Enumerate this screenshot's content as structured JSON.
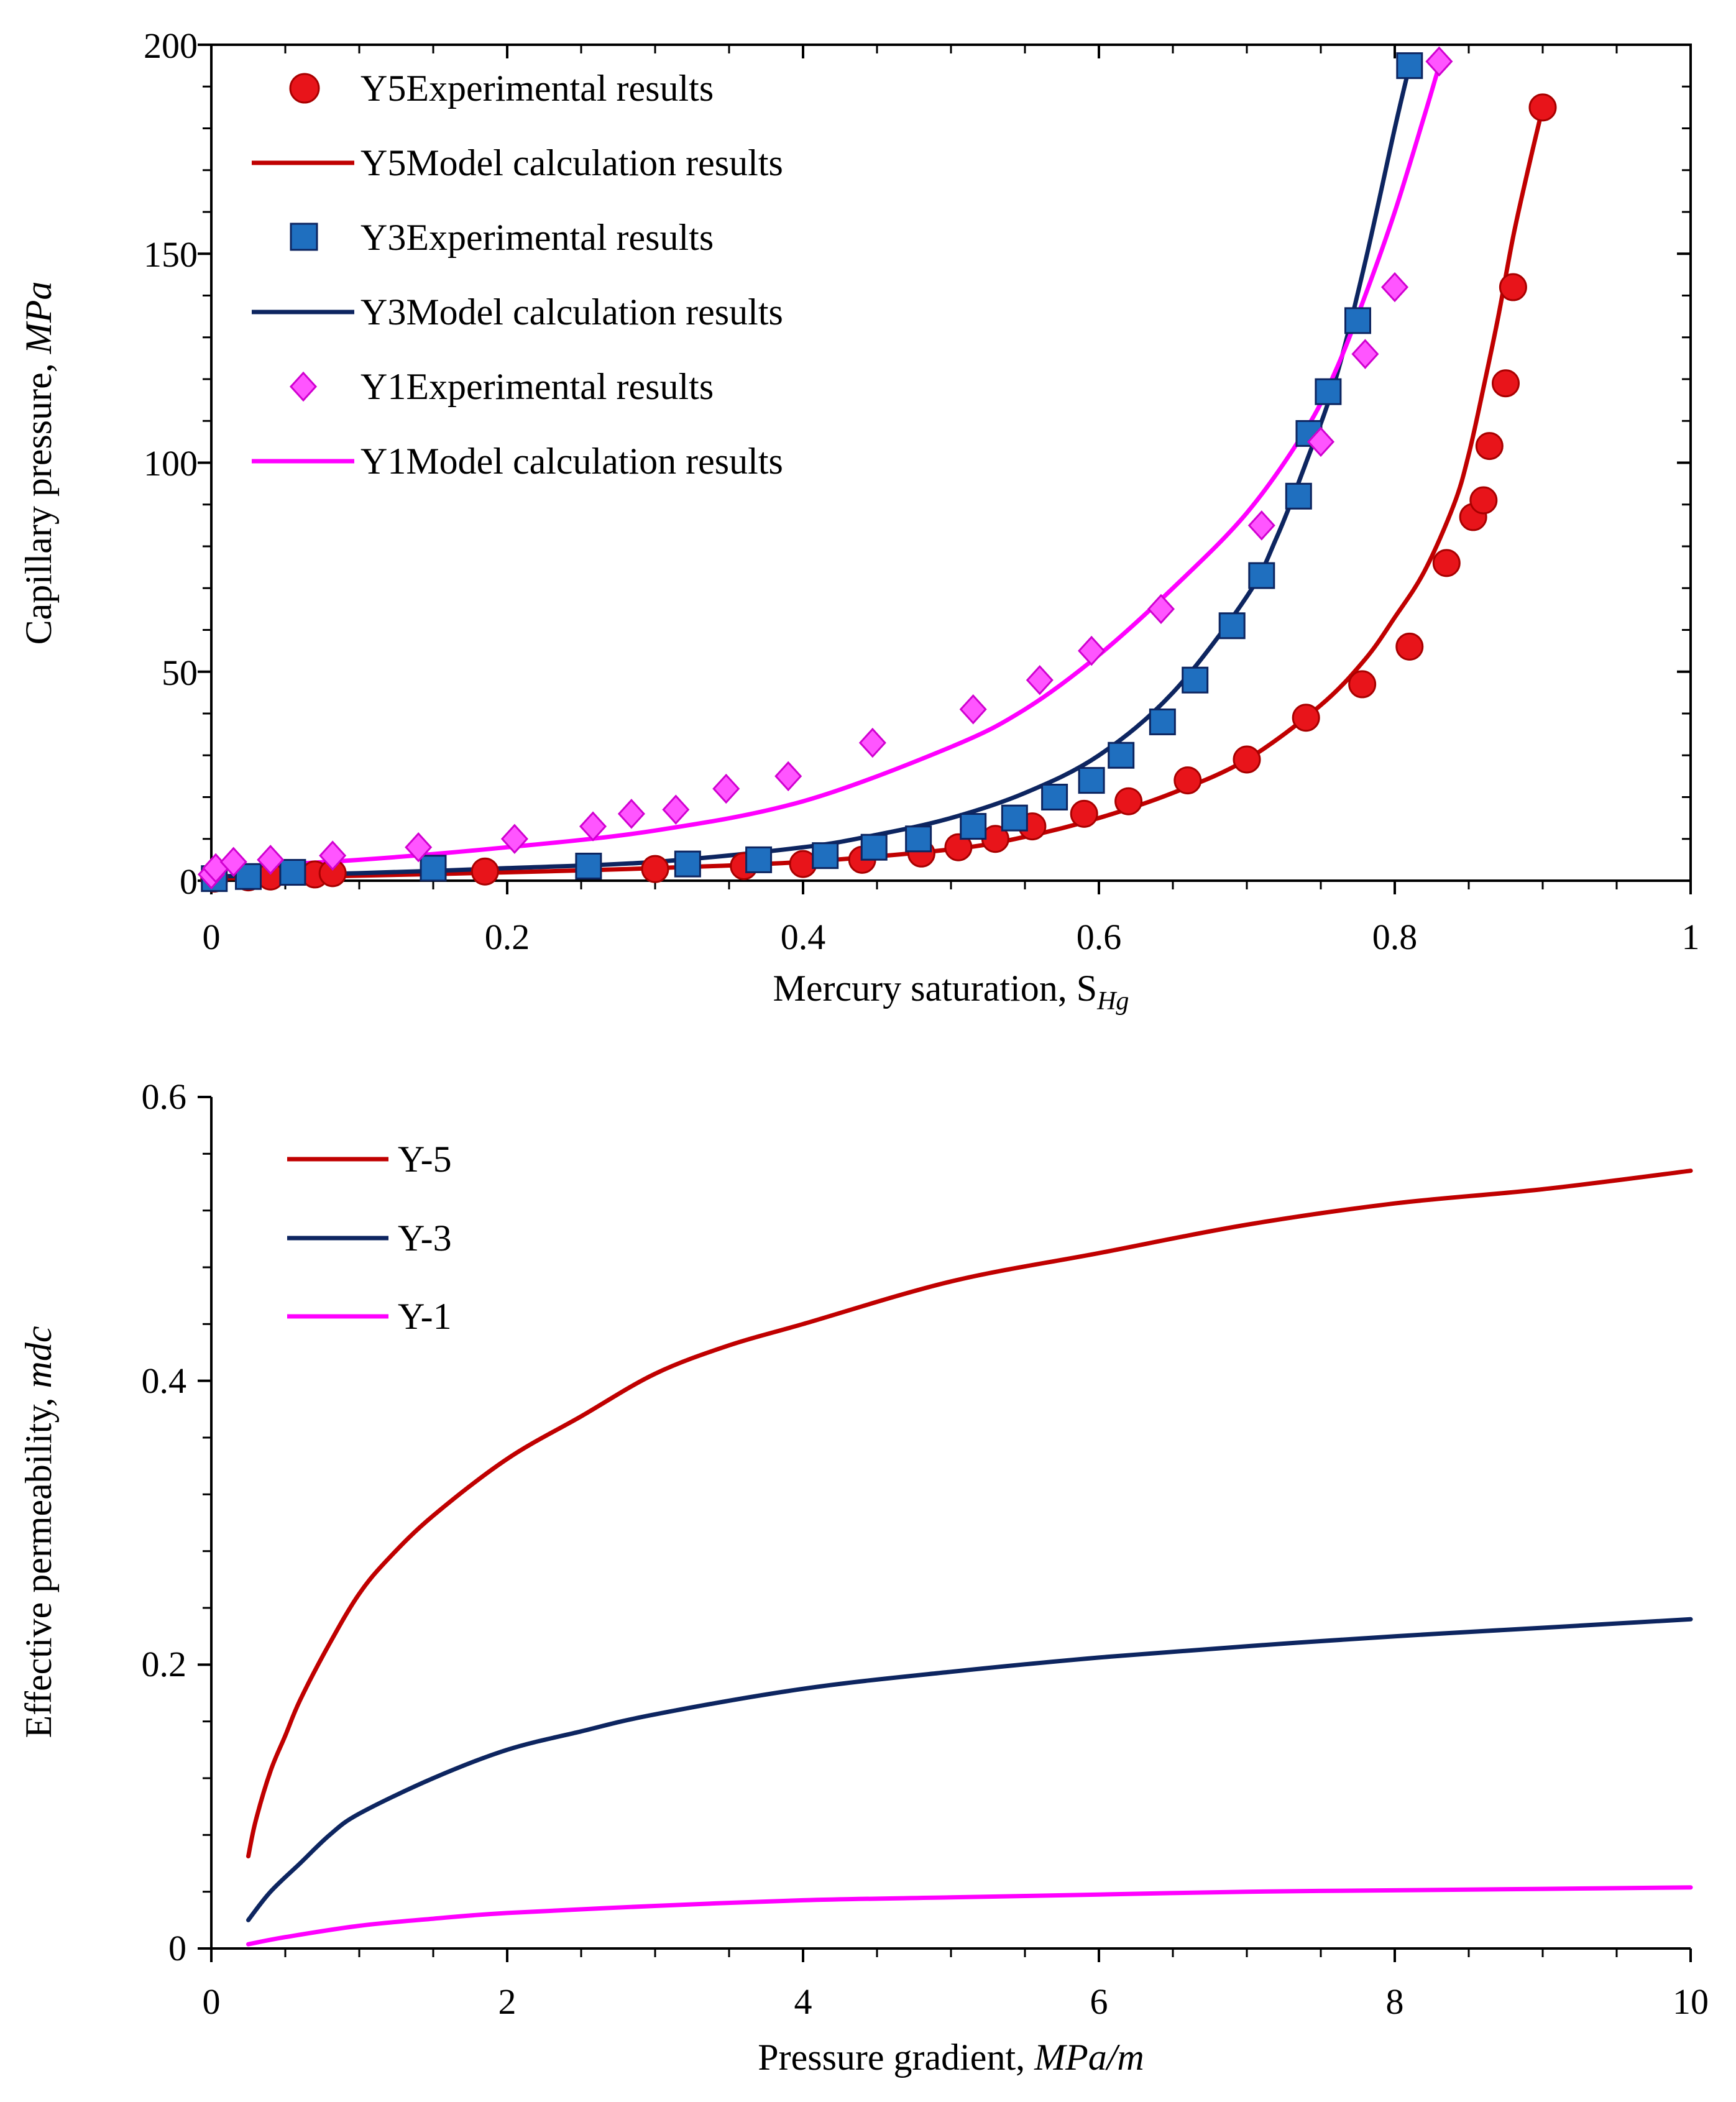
{
  "chart_data": [
    {
      "type": "scatter",
      "title": "",
      "xlabel": "Mercury saturation, S",
      "xlabel_sub": "Hg",
      "ylabel": "Capillary pressure, ",
      "ylabel_unit": "MPa",
      "xlim": [
        0,
        1
      ],
      "ylim": [
        0,
        200
      ],
      "xticks": [
        0,
        0.2,
        0.4,
        0.6,
        0.8,
        1
      ],
      "xtick_labels": [
        "0",
        "0.2",
        "0.4",
        "0.6",
        "0.8",
        "1"
      ],
      "yticks": [
        0,
        50,
        100,
        150,
        200
      ],
      "ytick_labels": [
        "0",
        "50",
        "100",
        "150",
        "200"
      ],
      "legend_position": "top-left",
      "series": [
        {
          "name": "Y5Experimental results",
          "kind": "marker",
          "marker": "circle",
          "color": "#e8141a",
          "x": [
            0.002,
            0.025,
            0.04,
            0.07,
            0.082,
            0.185,
            0.3,
            0.36,
            0.4,
            0.44,
            0.48,
            0.505,
            0.53,
            0.555,
            0.59,
            0.62,
            0.66,
            0.7,
            0.74,
            0.778,
            0.81,
            0.835,
            0.853,
            0.86,
            0.864,
            0.875,
            0.88,
            0.9
          ],
          "y": [
            0.5,
            0.8,
            1,
            1.5,
            1.8,
            2.2,
            2.8,
            3.5,
            4,
            5,
            6.5,
            8,
            10,
            13,
            16,
            19,
            24,
            29,
            39,
            47,
            56,
            76,
            87,
            91,
            104,
            119,
            142,
            185
          ]
        },
        {
          "name": "Y5Model calculation results",
          "kind": "line",
          "color": "#c00000",
          "x": [
            0,
            0.1,
            0.2,
            0.3,
            0.4,
            0.5,
            0.55,
            0.6,
            0.65,
            0.7,
            0.75,
            0.78,
            0.8,
            0.82,
            0.84,
            0.85,
            0.86,
            0.87,
            0.88,
            0.89,
            0.9
          ],
          "y": [
            0.5,
            1.2,
            2,
            3,
            4.5,
            7.5,
            10.5,
            15,
            21,
            29,
            42,
            53,
            63,
            74,
            90,
            102,
            118,
            135,
            154,
            170,
            185
          ]
        },
        {
          "name": "Y3Experimental results",
          "kind": "marker",
          "marker": "square",
          "color": "#1f6fbf",
          "x": [
            0.002,
            0.025,
            0.055,
            0.15,
            0.255,
            0.322,
            0.37,
            0.415,
            0.448,
            0.478,
            0.515,
            0.543,
            0.57,
            0.595,
            0.615,
            0.643,
            0.665,
            0.69,
            0.71,
            0.735,
            0.742,
            0.755,
            0.775,
            0.81
          ],
          "y": [
            0.5,
            1,
            2,
            3,
            3.5,
            4,
            5,
            6,
            8,
            10,
            13,
            15,
            20,
            24,
            30,
            38,
            48,
            61,
            73,
            92,
            107,
            117,
            134,
            195
          ]
        },
        {
          "name": "Y3Model calculation results",
          "kind": "line",
          "color": "#0d2560",
          "x": [
            0,
            0.1,
            0.2,
            0.3,
            0.4,
            0.45,
            0.5,
            0.55,
            0.6,
            0.65,
            0.7,
            0.72,
            0.74,
            0.76,
            0.78,
            0.8,
            0.81
          ],
          "y": [
            1,
            1.8,
            3,
            4.5,
            8,
            11,
            15,
            21,
            30,
            45,
            68,
            82,
            100,
            120,
            148,
            180,
            195
          ]
        },
        {
          "name": "Y1Experimental results",
          "kind": "marker",
          "marker": "diamond",
          "color": "#ff55ff",
          "x": [
            0,
            0.003,
            0.015,
            0.04,
            0.082,
            0.14,
            0.205,
            0.258,
            0.284,
            0.314,
            0.348,
            0.39,
            0.447,
            0.515,
            0.56,
            0.595,
            0.642,
            0.71,
            0.75,
            0.78,
            0.8,
            0.83
          ],
          "y": [
            1.5,
            3,
            4.5,
            5,
            6,
            8,
            10,
            13,
            16,
            17,
            22,
            25,
            33,
            41,
            48,
            55,
            65,
            85,
            105,
            126,
            142,
            196
          ]
        },
        {
          "name": "Y1Model calculation results",
          "kind": "line",
          "color": "#ff00ff",
          "x": [
            0,
            0.1,
            0.2,
            0.3,
            0.4,
            0.5,
            0.55,
            0.6,
            0.65,
            0.7,
            0.74,
            0.76,
            0.78,
            0.8,
            0.82,
            0.83
          ],
          "y": [
            3,
            5,
            8,
            12,
            19,
            32,
            41,
            54,
            70,
            88,
            108,
            122,
            140,
            160,
            183,
            195
          ]
        }
      ]
    },
    {
      "type": "line",
      "title": "",
      "xlabel": "Pressure gradient, ",
      "xlabel_unit": "MPa/m",
      "ylabel": "Effective permeability, ",
      "ylabel_unit": "mdc",
      "xlim": [
        0,
        10
      ],
      "ylim": [
        0,
        0.6
      ],
      "xticks": [
        0,
        2,
        4,
        6,
        8,
        10
      ],
      "xtick_labels": [
        "0",
        "2",
        "4",
        "6",
        "8",
        "10"
      ],
      "yticks": [
        0,
        0.2,
        0.4,
        0.6
      ],
      "ytick_labels": [
        "0",
        "0.2",
        "0.4",
        "0.6"
      ],
      "legend_position": "top-left",
      "series": [
        {
          "name": "Y-5",
          "kind": "line",
          "color": "#c00000",
          "x": [
            0.25,
            0.3,
            0.4,
            0.5,
            0.6,
            0.8,
            1,
            1.2,
            1.5,
            2,
            2.5,
            3,
            3.5,
            4,
            5,
            6,
            7,
            8,
            9,
            10
          ],
          "y": [
            0.065,
            0.09,
            0.125,
            0.15,
            0.175,
            0.215,
            0.25,
            0.275,
            0.305,
            0.345,
            0.375,
            0.405,
            0.425,
            0.44,
            0.47,
            0.49,
            0.51,
            0.525,
            0.535,
            0.548
          ]
        },
        {
          "name": "Y-3",
          "kind": "line",
          "color": "#0d2560",
          "x": [
            0.25,
            0.4,
            0.6,
            0.8,
            1,
            1.5,
            2,
            2.5,
            3,
            4,
            5,
            6,
            7,
            8,
            9,
            10
          ],
          "y": [
            0.02,
            0.04,
            0.06,
            0.08,
            0.095,
            0.12,
            0.14,
            0.153,
            0.165,
            0.183,
            0.195,
            0.205,
            0.213,
            0.22,
            0.226,
            0.232
          ]
        },
        {
          "name": "Y-1",
          "kind": "line",
          "color": "#ff00ff",
          "x": [
            0.25,
            0.5,
            1,
            1.5,
            2,
            3,
            4,
            5,
            6,
            7,
            8,
            9,
            10
          ],
          "y": [
            0.003,
            0.008,
            0.016,
            0.021,
            0.025,
            0.03,
            0.034,
            0.036,
            0.038,
            0.04,
            0.041,
            0.042,
            0.043
          ]
        }
      ]
    }
  ]
}
